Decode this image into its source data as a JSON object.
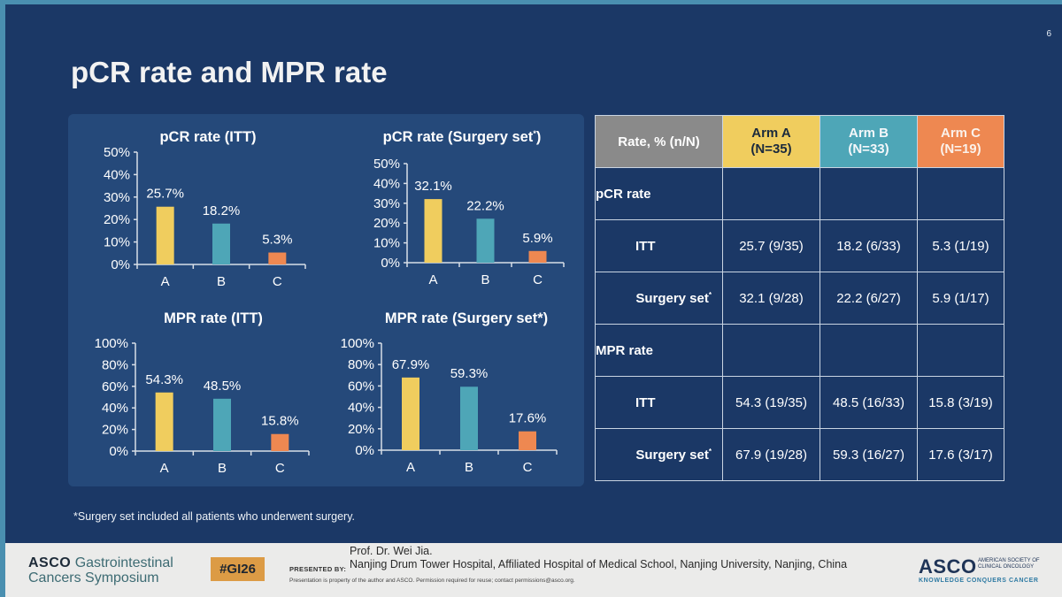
{
  "slide": {
    "title": "pCR rate and MPR rate",
    "page_number": "6",
    "footnote": "*Surgery set included all patients who underwent surgery."
  },
  "colors": {
    "arm_a": "#f0cd5e",
    "arm_b": "#4ea6b7",
    "arm_c": "#ee8851",
    "background": "#1b3866",
    "panel": "#25497a"
  },
  "chart_data": [
    {
      "type": "bar",
      "title": "pCR rate (ITT)",
      "categories": [
        "A",
        "B",
        "C"
      ],
      "values": [
        25.7,
        18.2,
        5.3
      ],
      "data_labels": [
        "25.7%",
        "18.2%",
        "5.3%"
      ],
      "yticks": [
        "0%",
        "10%",
        "20%",
        "30%",
        "40%",
        "50%"
      ],
      "ylim": [
        0,
        50
      ],
      "xlabel": "",
      "ylabel": "",
      "grid": false,
      "legend": "none"
    },
    {
      "type": "bar",
      "title": "pCR rate (Surgery set*)",
      "title_text": "pCR rate (Surgery set",
      "title_sup": "*",
      "title_end": ")",
      "categories": [
        "A",
        "B",
        "C"
      ],
      "values": [
        32.1,
        22.2,
        5.9
      ],
      "data_labels": [
        "32.1%",
        "22.2%",
        "5.9%"
      ],
      "yticks": [
        "0%",
        "10%",
        "20%",
        "30%",
        "40%",
        "50%"
      ],
      "ylim": [
        0,
        50
      ],
      "xlabel": "",
      "ylabel": "",
      "grid": false,
      "legend": "none"
    },
    {
      "type": "bar",
      "title": "MPR rate (ITT)",
      "categories": [
        "A",
        "B",
        "C"
      ],
      "values": [
        54.3,
        48.5,
        15.8
      ],
      "data_labels": [
        "54.3%",
        "48.5%",
        "15.8%"
      ],
      "yticks": [
        "0%",
        "20%",
        "40%",
        "60%",
        "80%",
        "100%"
      ],
      "ylim": [
        0,
        100
      ],
      "xlabel": "",
      "ylabel": "",
      "grid": false,
      "legend": "none"
    },
    {
      "type": "bar",
      "title": "MPR rate (Surgery set*)",
      "categories": [
        "A",
        "B",
        "C"
      ],
      "values": [
        67.9,
        59.3,
        17.6
      ],
      "data_labels": [
        "67.9%",
        "59.3%",
        "17.6%"
      ],
      "yticks": [
        "0%",
        "20%",
        "40%",
        "60%",
        "80%",
        "100%"
      ],
      "ylim": [
        0,
        100
      ],
      "xlabel": "",
      "ylabel": "",
      "grid": false,
      "legend": "none"
    }
  ],
  "table": {
    "header": {
      "rate": "Rate, % (n/N)",
      "arm_a": [
        "Arm A",
        "(N=35)"
      ],
      "arm_b": [
        "Arm B",
        "(N=33)"
      ],
      "arm_c": [
        "Arm C",
        "(N=19)"
      ]
    },
    "groups": [
      {
        "label": "pCR rate",
        "rows": [
          {
            "label": "ITT",
            "values": [
              "25.7 (9/35)",
              "18.2 (6/33)",
              "5.3 (1/19)"
            ]
          },
          {
            "label": "Surgery set",
            "sup": "*",
            "values": [
              "32.1 (9/28)",
              "22.2 (6/27)",
              "5.9 (1/17)"
            ]
          }
        ]
      },
      {
        "label": "MPR rate",
        "rows": [
          {
            "label": "ITT",
            "values": [
              "54.3 (19/35)",
              "48.5 (16/33)",
              "15.8 (3/19)"
            ]
          },
          {
            "label": "Surgery set",
            "sup": "*",
            "values": [
              "67.9 (19/28)",
              "59.3 (16/27)",
              "17.6 (3/17)"
            ]
          }
        ]
      }
    ]
  },
  "footer": {
    "symposium_brand": "ASCO",
    "symposium_line1": "Gastrointestinal",
    "symposium_line2": "Cancers Symposium",
    "hashtag": "#GI26",
    "presented_by_label": "PRESENTED BY:",
    "presenter_name": "Prof. Dr. Wei Jia.",
    "presenter_institution": "Nanjing Drum Tower Hospital, Affiliated Hospital of Medical School, Nanjing University, Nanjing, China",
    "permission": "Presentation is property of the author and ASCO. Permission required for reuse; contact permissions@asco.org.",
    "asco_logo": "ASCO",
    "asco_society": "AMERICAN SOCIETY OF CLINICAL ONCOLOGY",
    "asco_tagline": "KNOWLEDGE CONQUERS CANCER"
  }
}
